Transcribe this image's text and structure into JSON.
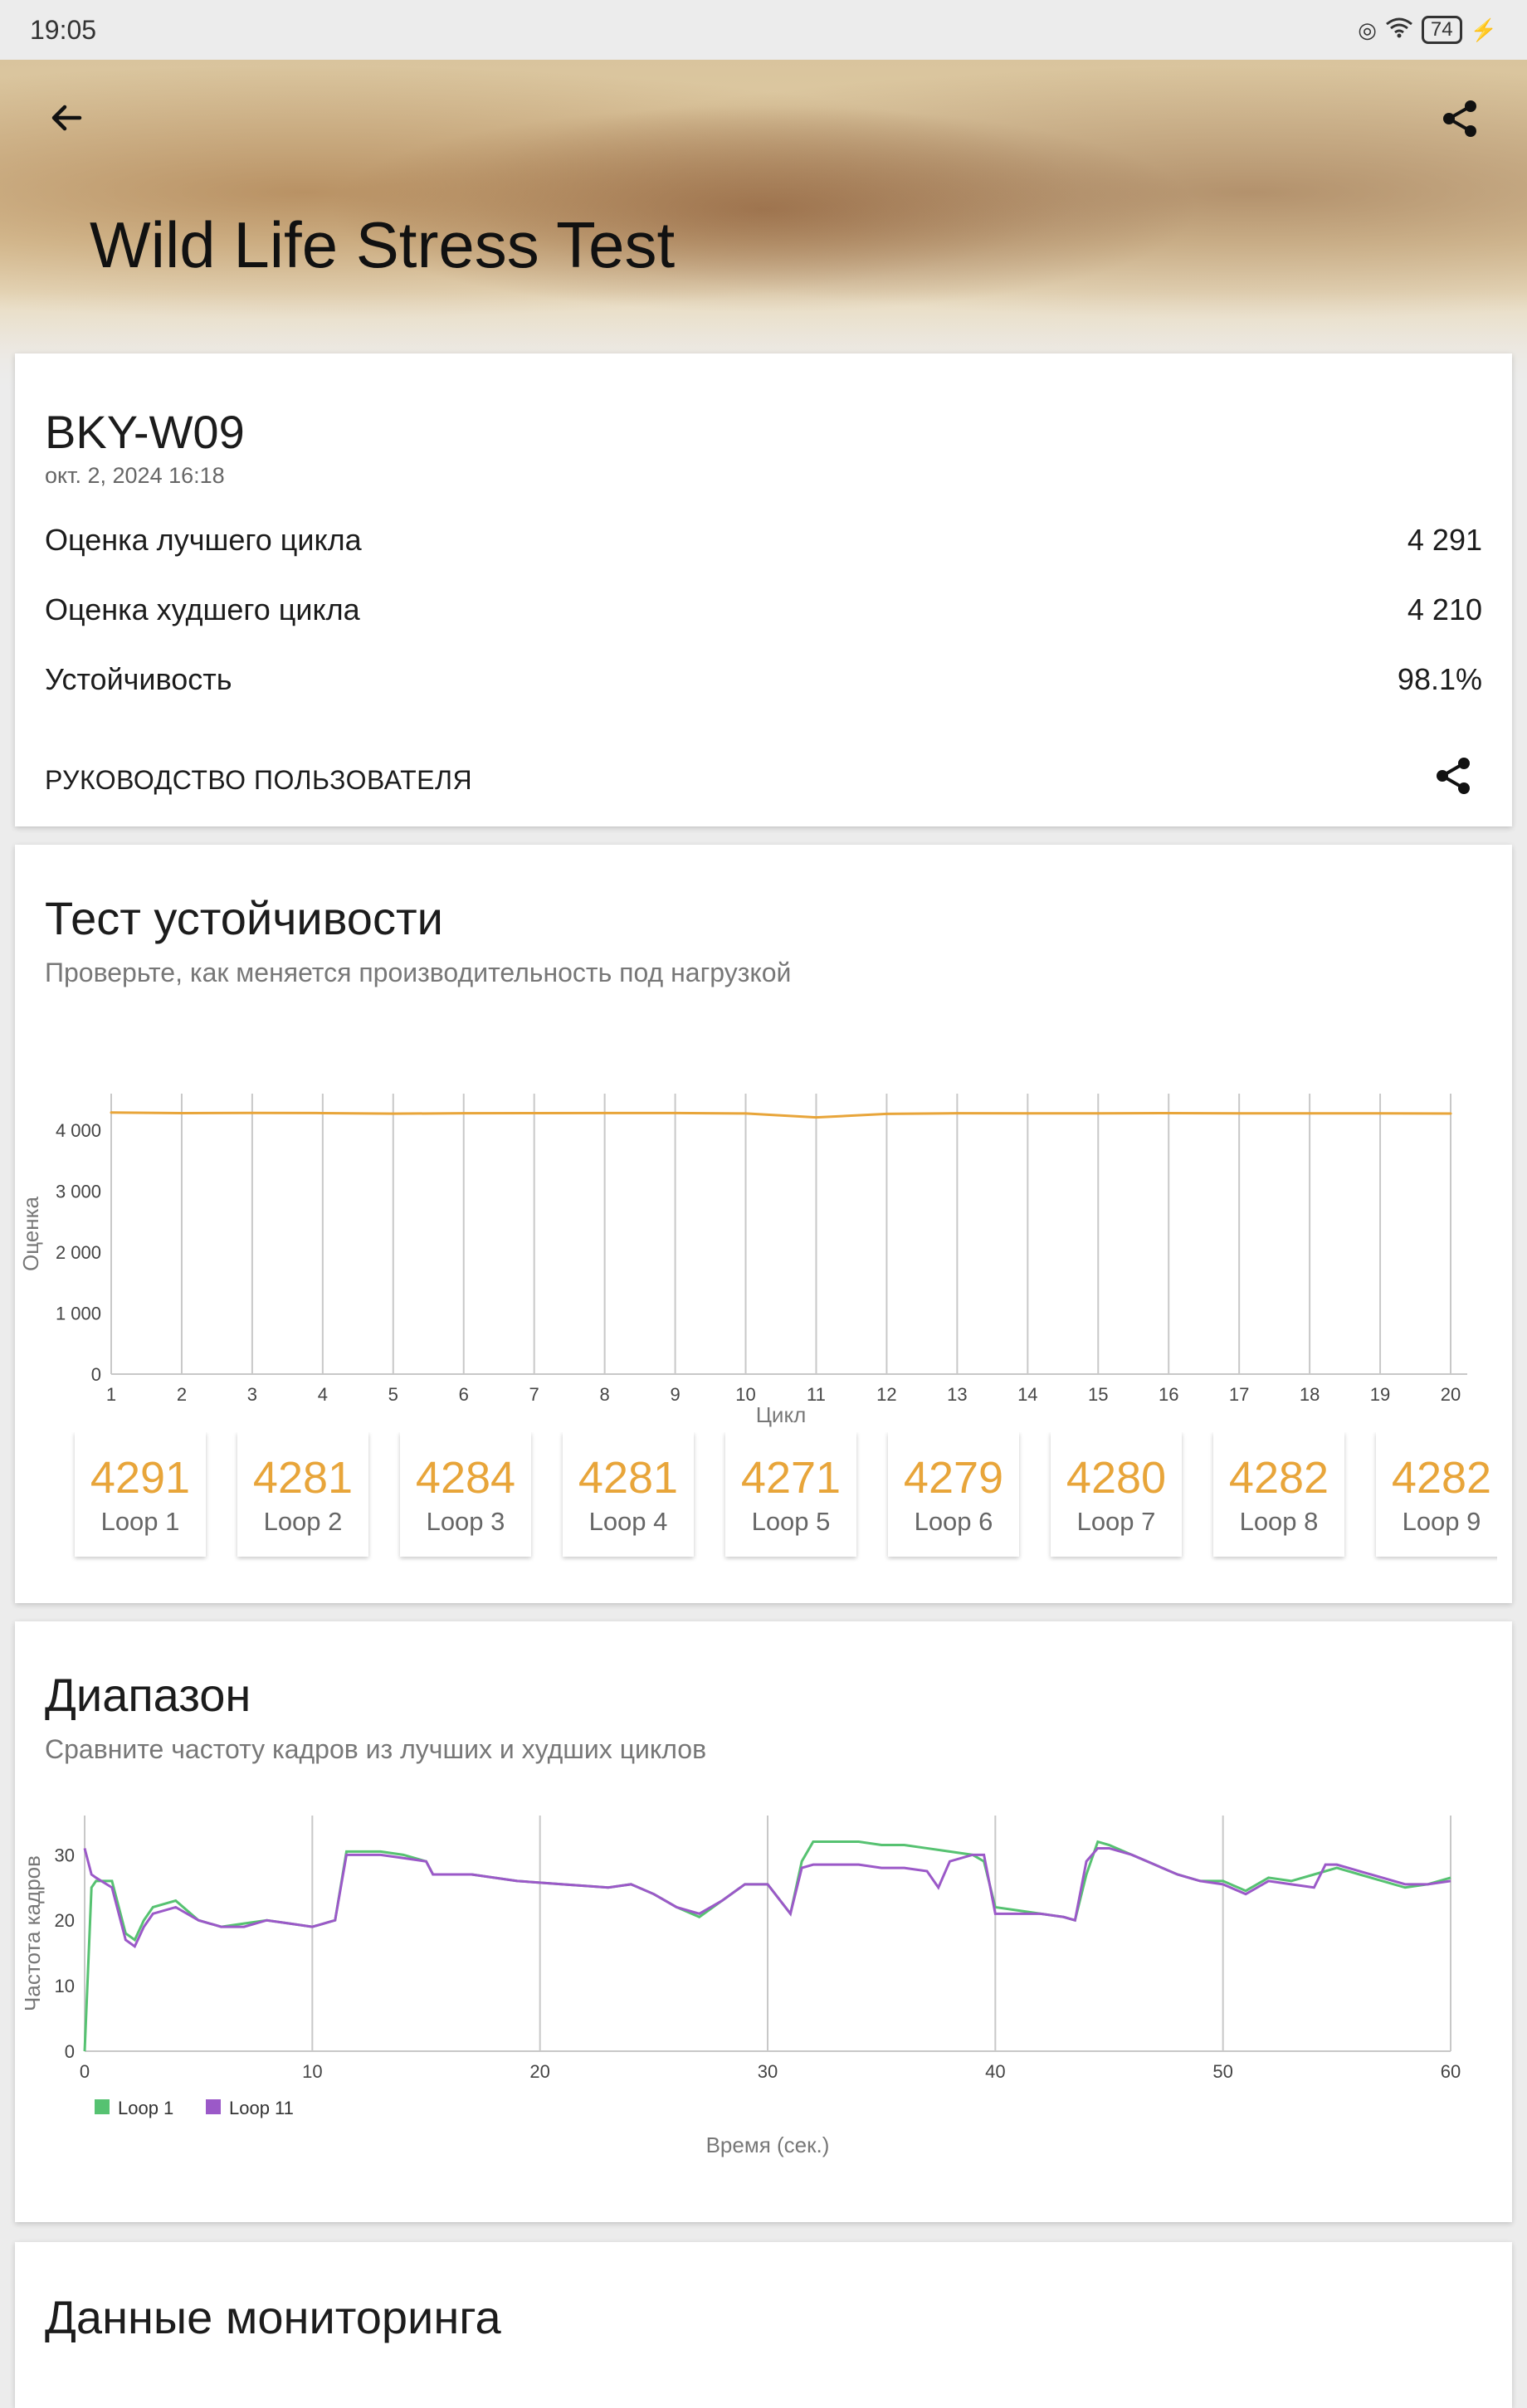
{
  "status_bar": {
    "time": "19:05",
    "battery": "74"
  },
  "header": {
    "title": "Wild Life Stress Test"
  },
  "summary": {
    "device": "BKY-W09",
    "date": "окт. 2, 2024 16:18",
    "stats": [
      {
        "label": "Оценка лучшего цикла",
        "value": "4 291"
      },
      {
        "label": "Оценка худшего цикла",
        "value": "4 210"
      },
      {
        "label": "Устойчивость",
        "value": "98.1%"
      }
    ],
    "guide_label": "РУКОВОДСТВО ПОЛЬЗОВАТЕЛЯ"
  },
  "stability": {
    "title": "Тест устойчивости",
    "subtitle": "Проверьте, как меняется производительность под нагрузкой",
    "loops": [
      {
        "score": "4291",
        "name": "Loop 1"
      },
      {
        "score": "4281",
        "name": "Loop 2"
      },
      {
        "score": "4284",
        "name": "Loop 3"
      },
      {
        "score": "4281",
        "name": "Loop 4"
      },
      {
        "score": "4271",
        "name": "Loop 5"
      },
      {
        "score": "4279",
        "name": "Loop 6"
      },
      {
        "score": "4280",
        "name": "Loop 7"
      },
      {
        "score": "4282",
        "name": "Loop 8"
      },
      {
        "score": "4282",
        "name": "Loop 9"
      }
    ]
  },
  "range": {
    "title": "Диапазон",
    "subtitle": "Сравните частоту кадров из лучших и худших циклов"
  },
  "monitoring": {
    "title": "Данные мониторинга"
  },
  "chart_data": [
    {
      "type": "line",
      "xlabel": "Цикл",
      "ylabel": "Оценка",
      "x": [
        1,
        2,
        3,
        4,
        5,
        6,
        7,
        8,
        9,
        10,
        11,
        12,
        13,
        14,
        15,
        16,
        17,
        18,
        19,
        20
      ],
      "y_ticks": [
        "0",
        "1 000",
        "2 000",
        "3 000",
        "4 000"
      ],
      "ylim": [
        0,
        4600
      ],
      "series": [
        {
          "values": [
            4291,
            4281,
            4284,
            4281,
            4271,
            4279,
            4280,
            4282,
            4282,
            4275,
            4210,
            4268,
            4278,
            4277,
            4276,
            4280,
            4277,
            4276,
            4276,
            4274
          ],
          "color": "#e8a53a"
        }
      ],
      "grid": "vertical"
    },
    {
      "type": "line",
      "xlabel": "Время (сек.)",
      "ylabel": "Частота кадров",
      "x_ticks": [
        0,
        10,
        20,
        30,
        40,
        50,
        60
      ],
      "y_ticks": [
        0,
        10,
        20,
        30
      ],
      "xlim": [
        0,
        60
      ],
      "ylim": [
        0,
        36
      ],
      "legend": "bottom-left",
      "series": [
        {
          "name": "Loop 1",
          "color": "#56c271",
          "points": [
            [
              0,
              0
            ],
            [
              0.3,
              25
            ],
            [
              0.5,
              26
            ],
            [
              1.2,
              26
            ],
            [
              1.8,
              18
            ],
            [
              2.2,
              17
            ],
            [
              2.6,
              20
            ],
            [
              3,
              22
            ],
            [
              4,
              23
            ],
            [
              5,
              20
            ],
            [
              6,
              19
            ],
            [
              7,
              19.5
            ],
            [
              8,
              20
            ],
            [
              9,
              19.5
            ],
            [
              10,
              19
            ],
            [
              11,
              20
            ],
            [
              11.5,
              30.5
            ],
            [
              12,
              30.5
            ],
            [
              13,
              30.5
            ],
            [
              14,
              30
            ],
            [
              15,
              29
            ],
            [
              15.3,
              27
            ],
            [
              17,
              27
            ],
            [
              19,
              26
            ],
            [
              21,
              25.5
            ],
            [
              23,
              25
            ],
            [
              24,
              25.5
            ],
            [
              25,
              24
            ],
            [
              26,
              22
            ],
            [
              27,
              20.5
            ],
            [
              28,
              23
            ],
            [
              29,
              25.5
            ],
            [
              30,
              25.5
            ],
            [
              31,
              21
            ],
            [
              31.5,
              29
            ],
            [
              32,
              32
            ],
            [
              33,
              32
            ],
            [
              34,
              32
            ],
            [
              35,
              31.5
            ],
            [
              36,
              31.5
            ],
            [
              37,
              31
            ],
            [
              38,
              30.5
            ],
            [
              39,
              30
            ],
            [
              39.5,
              29
            ],
            [
              40,
              22
            ],
            [
              41,
              21.5
            ],
            [
              42,
              21
            ],
            [
              43,
              20.5
            ],
            [
              43.5,
              20
            ],
            [
              44,
              27
            ],
            [
              44.5,
              32
            ],
            [
              45,
              31.5
            ],
            [
              46,
              30
            ],
            [
              47,
              28.5
            ],
            [
              48,
              27
            ],
            [
              49,
              26
            ],
            [
              50,
              26
            ],
            [
              51,
              24.5
            ],
            [
              52,
              26.5
            ],
            [
              53,
              26
            ],
            [
              54,
              27
            ],
            [
              55,
              28
            ],
            [
              56,
              27
            ],
            [
              58,
              25
            ],
            [
              59,
              25.5
            ],
            [
              60,
              26.5
            ]
          ]
        },
        {
          "name": "Loop 11",
          "color": "#9b59c8",
          "points": [
            [
              0,
              31
            ],
            [
              0.3,
              27
            ],
            [
              0.5,
              26.5
            ],
            [
              1.2,
              25
            ],
            [
              1.8,
              17
            ],
            [
              2.2,
              16
            ],
            [
              2.6,
              19
            ],
            [
              3,
              21
            ],
            [
              4,
              22
            ],
            [
              5,
              20
            ],
            [
              6,
              19
            ],
            [
              7,
              19
            ],
            [
              8,
              20
            ],
            [
              9,
              19.5
            ],
            [
              10,
              19
            ],
            [
              11,
              20
            ],
            [
              11.5,
              30
            ],
            [
              12,
              30
            ],
            [
              13,
              30
            ],
            [
              14,
              29.5
            ],
            [
              15,
              29
            ],
            [
              15.3,
              27
            ],
            [
              17,
              27
            ],
            [
              19,
              26
            ],
            [
              21,
              25.5
            ],
            [
              23,
              25
            ],
            [
              24,
              25.5
            ],
            [
              25,
              24
            ],
            [
              26,
              22
            ],
            [
              27,
              21
            ],
            [
              28,
              23
            ],
            [
              29,
              25.5
            ],
            [
              30,
              25.5
            ],
            [
              31,
              21
            ],
            [
              31.5,
              28
            ],
            [
              32,
              28.5
            ],
            [
              33,
              28.5
            ],
            [
              34,
              28.5
            ],
            [
              35,
              28
            ],
            [
              36,
              28
            ],
            [
              37,
              27.5
            ],
            [
              37.5,
              25
            ],
            [
              38,
              29
            ],
            [
              39,
              30
            ],
            [
              39.5,
              30
            ],
            [
              40,
              21
            ],
            [
              41,
              21
            ],
            [
              42,
              21
            ],
            [
              43,
              20.5
            ],
            [
              43.5,
              20
            ],
            [
              44,
              29
            ],
            [
              44.5,
              31
            ],
            [
              45,
              31
            ],
            [
              46,
              30
            ],
            [
              47,
              28.5
            ],
            [
              48,
              27
            ],
            [
              49,
              26
            ],
            [
              50,
              25.5
            ],
            [
              51,
              24
            ],
            [
              52,
              26
            ],
            [
              53,
              25.5
            ],
            [
              54,
              25
            ],
            [
              54.5,
              28.5
            ],
            [
              55,
              28.5
            ],
            [
              56,
              27.5
            ],
            [
              58,
              25.5
            ],
            [
              59,
              25.5
            ],
            [
              60,
              26
            ]
          ]
        }
      ]
    }
  ]
}
